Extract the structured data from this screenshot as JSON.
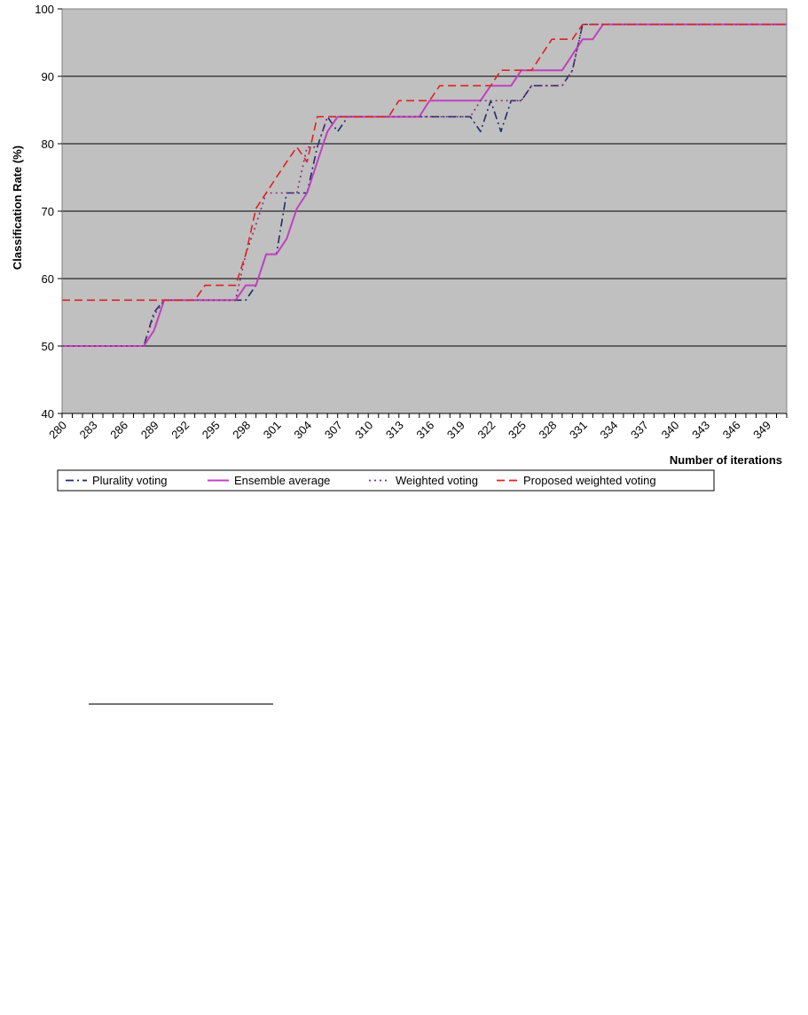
{
  "chart_data": {
    "type": "line",
    "xlabel": "Number of iterations",
    "ylabel": "Classification Rate (%)",
    "xlim": [
      280,
      351
    ],
    "ylim": [
      40,
      100
    ],
    "ytick_values": [
      40,
      50,
      60,
      70,
      80,
      90,
      100
    ],
    "xtick_values": [
      280,
      283,
      286,
      289,
      292,
      295,
      298,
      301,
      304,
      307,
      310,
      313,
      316,
      319,
      322,
      325,
      328,
      331,
      334,
      337,
      340,
      343,
      346,
      349
    ],
    "grid": "horizontal",
    "plot_background": "#c0c0c0",
    "legend_position": "bottom",
    "series": [
      {
        "name": "Plurality voting",
        "color": "#1f2a6e",
        "style": "dash-dot",
        "points": [
          [
            280,
            50
          ],
          [
            288,
            50
          ],
          [
            289,
            55
          ],
          [
            290,
            56.8
          ],
          [
            298,
            56.8
          ],
          [
            299,
            59
          ],
          [
            300,
            63.6
          ],
          [
            301,
            63.6
          ],
          [
            302,
            72.7
          ],
          [
            304,
            72.7
          ],
          [
            305,
            79.5
          ],
          [
            306,
            84
          ],
          [
            307,
            81.8
          ],
          [
            308,
            84
          ],
          [
            320,
            84
          ],
          [
            321,
            81.8
          ],
          [
            322,
            86.4
          ],
          [
            323,
            81.8
          ],
          [
            324,
            86.4
          ],
          [
            325,
            86.4
          ],
          [
            326,
            88.6
          ],
          [
            329,
            88.6
          ],
          [
            330,
            90.9
          ],
          [
            331,
            97.7
          ],
          [
            351,
            97.7
          ]
        ]
      },
      {
        "name": "Ensemble average",
        "color": "#c040c0",
        "style": "solid",
        "points": [
          [
            280,
            50
          ],
          [
            288,
            50
          ],
          [
            289,
            52.3
          ],
          [
            290,
            56.8
          ],
          [
            297,
            56.8
          ],
          [
            298,
            59
          ],
          [
            299,
            59
          ],
          [
            300,
            63.6
          ],
          [
            301,
            63.6
          ],
          [
            302,
            65.9
          ],
          [
            303,
            70.4
          ],
          [
            304,
            72.7
          ],
          [
            305,
            77.3
          ],
          [
            306,
            81.8
          ],
          [
            307,
            84
          ],
          [
            315,
            84
          ],
          [
            316,
            86.4
          ],
          [
            321,
            86.4
          ],
          [
            322,
            88.6
          ],
          [
            324,
            88.6
          ],
          [
            325,
            90.9
          ],
          [
            329,
            90.9
          ],
          [
            330,
            93.2
          ],
          [
            331,
            95.5
          ],
          [
            332,
            95.5
          ],
          [
            333,
            97.7
          ],
          [
            351,
            97.7
          ]
        ]
      },
      {
        "name": "Weighted voting",
        "color": "#8b2b7a",
        "style": "dotted",
        "points": [
          [
            280,
            50
          ],
          [
            288,
            50
          ],
          [
            289,
            54.5
          ],
          [
            290,
            56.8
          ],
          [
            297,
            56.8
          ],
          [
            298,
            63.6
          ],
          [
            299,
            68
          ],
          [
            300,
            72.7
          ],
          [
            303,
            72.7
          ],
          [
            304,
            79.5
          ],
          [
            305,
            79.5
          ],
          [
            306,
            84
          ],
          [
            313,
            84
          ],
          [
            314,
            84
          ],
          [
            320,
            84
          ],
          [
            321,
            86.4
          ],
          [
            325,
            86.4
          ],
          [
            326,
            88.6
          ],
          [
            329,
            88.6
          ],
          [
            330,
            90.9
          ],
          [
            331,
            97.7
          ],
          [
            351,
            97.7
          ]
        ]
      },
      {
        "name": "Proposed weighted voting",
        "color": "#e02020",
        "style": "dashed",
        "points": [
          [
            280,
            56.8
          ],
          [
            293,
            56.8
          ],
          [
            294,
            59
          ],
          [
            297,
            59
          ],
          [
            298,
            63.6
          ],
          [
            299,
            70.4
          ],
          [
            300,
            72.7
          ],
          [
            301,
            75
          ],
          [
            302,
            77.3
          ],
          [
            303,
            79.5
          ],
          [
            304,
            77.3
          ],
          [
            305,
            84
          ],
          [
            312,
            84
          ],
          [
            313,
            86.4
          ],
          [
            316,
            86.4
          ],
          [
            317,
            88.6
          ],
          [
            322,
            88.6
          ],
          [
            323,
            90.9
          ],
          [
            326,
            90.9
          ],
          [
            327,
            93.2
          ],
          [
            328,
            95.5
          ],
          [
            330,
            95.5
          ],
          [
            331,
            97.7
          ],
          [
            351,
            97.7
          ]
        ]
      }
    ]
  }
}
